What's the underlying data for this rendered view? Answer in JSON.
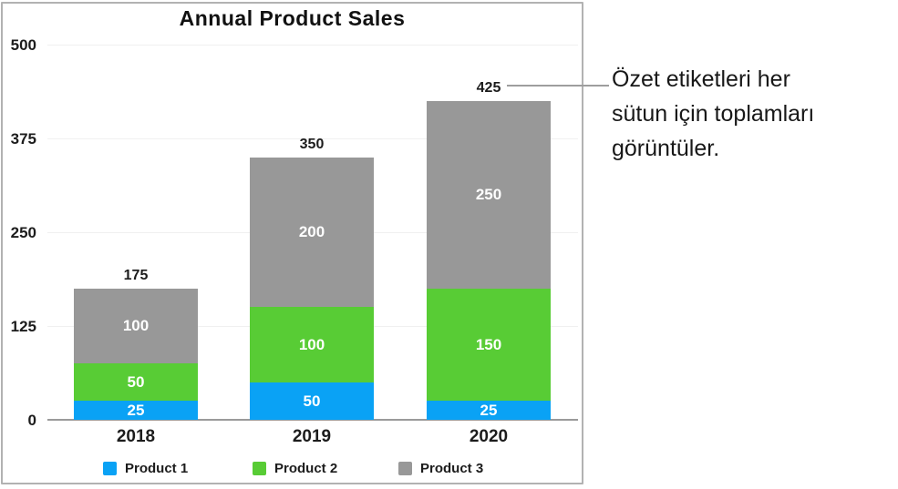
{
  "chart_data": {
    "type": "bar",
    "stacked": true,
    "title": "Annual Product Sales",
    "categories": [
      "2018",
      "2019",
      "2020"
    ],
    "series": [
      {
        "name": "Product 1",
        "color": "#0aa2f5",
        "values": [
          25,
          50,
          25
        ]
      },
      {
        "name": "Product 2",
        "color": "#58cc35",
        "values": [
          50,
          100,
          150
        ]
      },
      {
        "name": "Product 3",
        "color": "#989898",
        "values": [
          100,
          200,
          250
        ]
      }
    ],
    "totals": [
      175,
      350,
      425
    ],
    "yticks": [
      0,
      125,
      250,
      375,
      500
    ],
    "ylim": [
      0,
      500
    ],
    "grid": true,
    "legend_position": "bottom",
    "value_label_color": "#ffffff"
  },
  "annotation": {
    "text": "Özet etiketleri her\nsütun için toplamları\ngörüntüler.",
    "points_to_label": "425",
    "callout_color": "#9e9e9e"
  }
}
